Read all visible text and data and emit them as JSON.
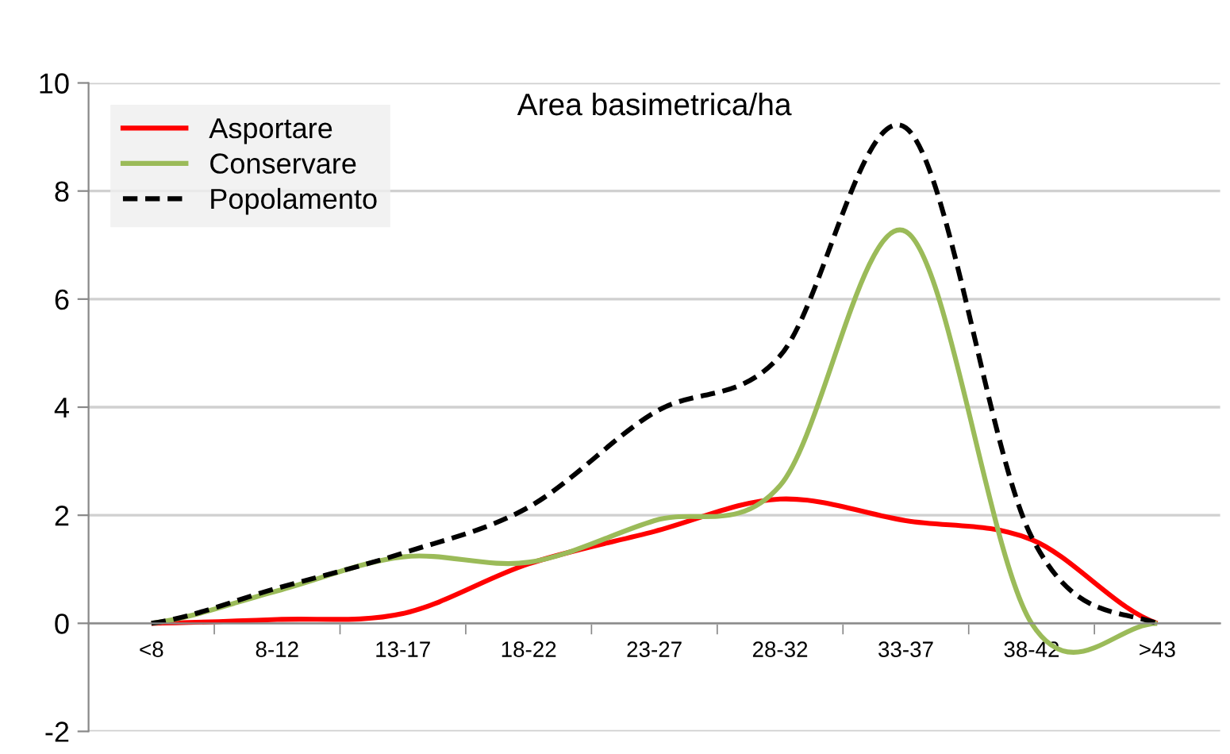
{
  "chart_data": {
    "type": "line",
    "title": "Area basimetrica/ha",
    "categories": [
      "<8",
      "8-12",
      "13-17",
      "18-22",
      "23-27",
      "28-32",
      "33-37",
      "38-42",
      ">43"
    ],
    "series": [
      {
        "name": "Asportare",
        "color": "#ff0000",
        "values": [
          0,
          0.07,
          0.18,
          1.1,
          1.7,
          2.3,
          1.9,
          1.55,
          0
        ]
      },
      {
        "name": "Conservare",
        "color": "#9bbb59",
        "values": [
          0,
          0.6,
          1.23,
          1.13,
          1.9,
          2.55,
          7.25,
          0,
          0
        ]
      },
      {
        "name": "Popolamento",
        "color": "#000000",
        "line_style": "dashed",
        "values": [
          0,
          0.65,
          1.3,
          2.15,
          3.9,
          4.95,
          9.17,
          1.6,
          0
        ]
      }
    ],
    "ylim": [
      -2,
      10
    ],
    "yticks": [
      -2,
      0,
      2,
      4,
      6,
      8,
      10
    ],
    "grid": "y",
    "legend": "top left",
    "marker": "none"
  }
}
